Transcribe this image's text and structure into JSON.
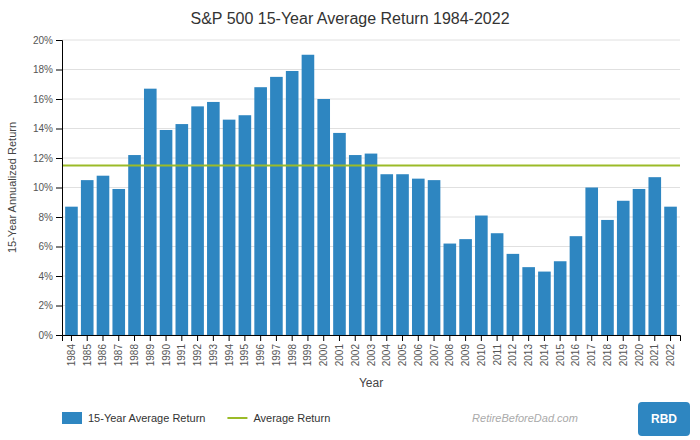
{
  "chart_data": {
    "type": "bar",
    "title": "S&P 500 15-Year Average Return 1984-2022",
    "xlabel": "Year",
    "ylabel": "15-Year Annualized Return",
    "categories": [
      "1984",
      "1985",
      "1986",
      "1987",
      "1988",
      "1989",
      "1990",
      "1991",
      "1992",
      "1993",
      "1994",
      "1995",
      "1996",
      "1997",
      "1998",
      "1999",
      "2000",
      "2001",
      "2002",
      "2003",
      "2004",
      "2005",
      "2006",
      "2007",
      "2008",
      "2009",
      "2010",
      "2011",
      "2012",
      "2013",
      "2014",
      "2015",
      "2016",
      "2017",
      "2018",
      "2019",
      "2020",
      "2021",
      "2022"
    ],
    "series": [
      {
        "name": "15-Year Average Return",
        "type": "bar",
        "color": "#2E86C1",
        "values": [
          0.087,
          0.105,
          0.108,
          0.099,
          0.122,
          0.167,
          0.139,
          0.143,
          0.155,
          0.158,
          0.146,
          0.149,
          0.168,
          0.175,
          0.179,
          0.19,
          0.16,
          0.137,
          0.122,
          0.123,
          0.109,
          0.109,
          0.106,
          0.105,
          0.062,
          0.065,
          0.081,
          0.069,
          0.055,
          0.046,
          0.043,
          0.05,
          0.067,
          0.1,
          0.078,
          0.091,
          0.099,
          0.107,
          0.087
        ]
      },
      {
        "name": "Average Return",
        "type": "line",
        "color": "#9BBB28",
        "value": 0.115
      }
    ],
    "ylim": [
      0,
      0.2
    ],
    "yticks": [
      {
        "value": 0,
        "label": "0%"
      },
      {
        "value": 0.02,
        "label": "2%"
      },
      {
        "value": 0.04,
        "label": "4%"
      },
      {
        "value": 0.06,
        "label": "6%"
      },
      {
        "value": 0.08,
        "label": "8%"
      },
      {
        "value": 0.1,
        "label": "10%"
      },
      {
        "value": 0.12,
        "label": "12%"
      },
      {
        "value": 0.14,
        "label": "14%"
      },
      {
        "value": 0.16,
        "label": "16%"
      },
      {
        "value": 0.18,
        "label": "18%"
      },
      {
        "value": 0.2,
        "label": "20%"
      }
    ],
    "grid": true,
    "legend": "bottom",
    "annotations": [
      {
        "text": "RetireBeforeDad.com"
      },
      {
        "text": "RBD",
        "color": "#2E86C1"
      }
    ]
  }
}
